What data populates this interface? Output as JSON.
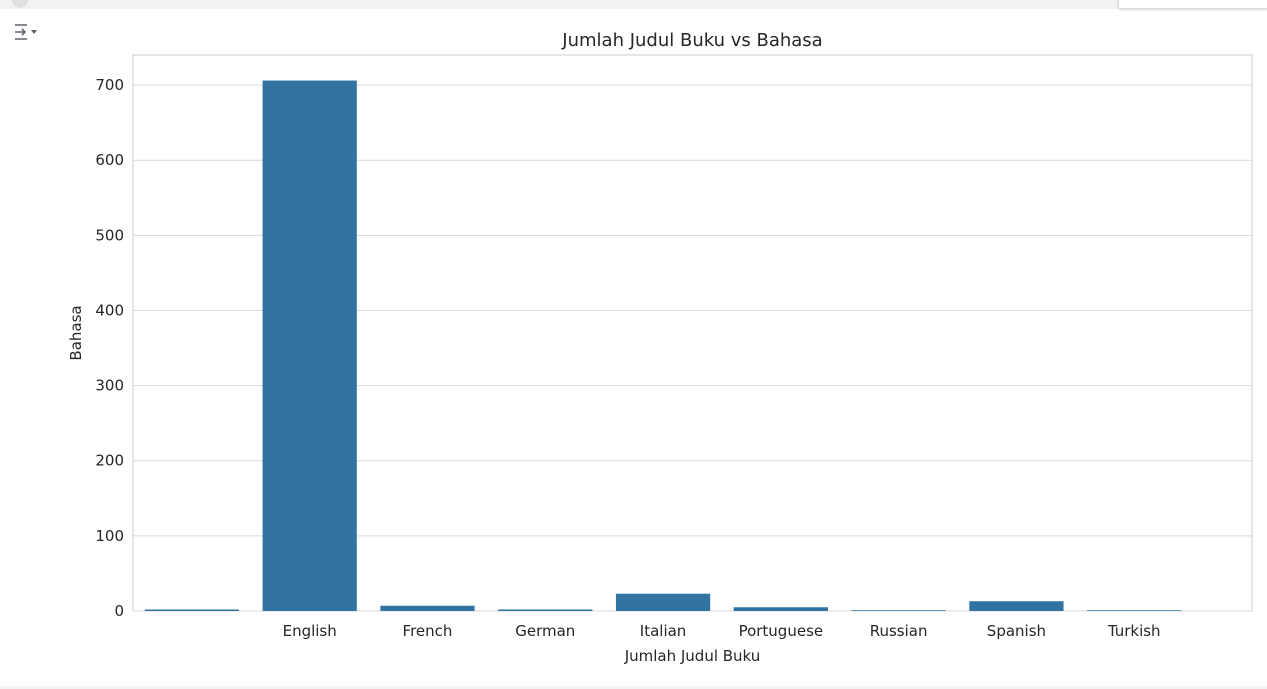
{
  "icons": {
    "output_toggle": "output-options-icon"
  },
  "colors": {
    "bar": "#3274a1",
    "grid": "#d9d9d9",
    "frame": "#cccccc",
    "text": "#262626"
  },
  "chart_data": {
    "type": "bar",
    "title": "Jumlah Judul Buku vs Bahasa",
    "xlabel": "Jumlah Judul Buku",
    "ylabel": "Bahasa",
    "categories": [
      "",
      "English",
      "French",
      "German",
      "Italian",
      "Portuguese",
      "Russian",
      "Spanish",
      "Turkish"
    ],
    "values": [
      2,
      706,
      7,
      2,
      23,
      5,
      1,
      13,
      1
    ],
    "ylim": [
      0,
      740
    ],
    "yticks": [
      0,
      100,
      200,
      300,
      400,
      500,
      600,
      700
    ],
    "grid": "horizontal",
    "legend": "none"
  }
}
